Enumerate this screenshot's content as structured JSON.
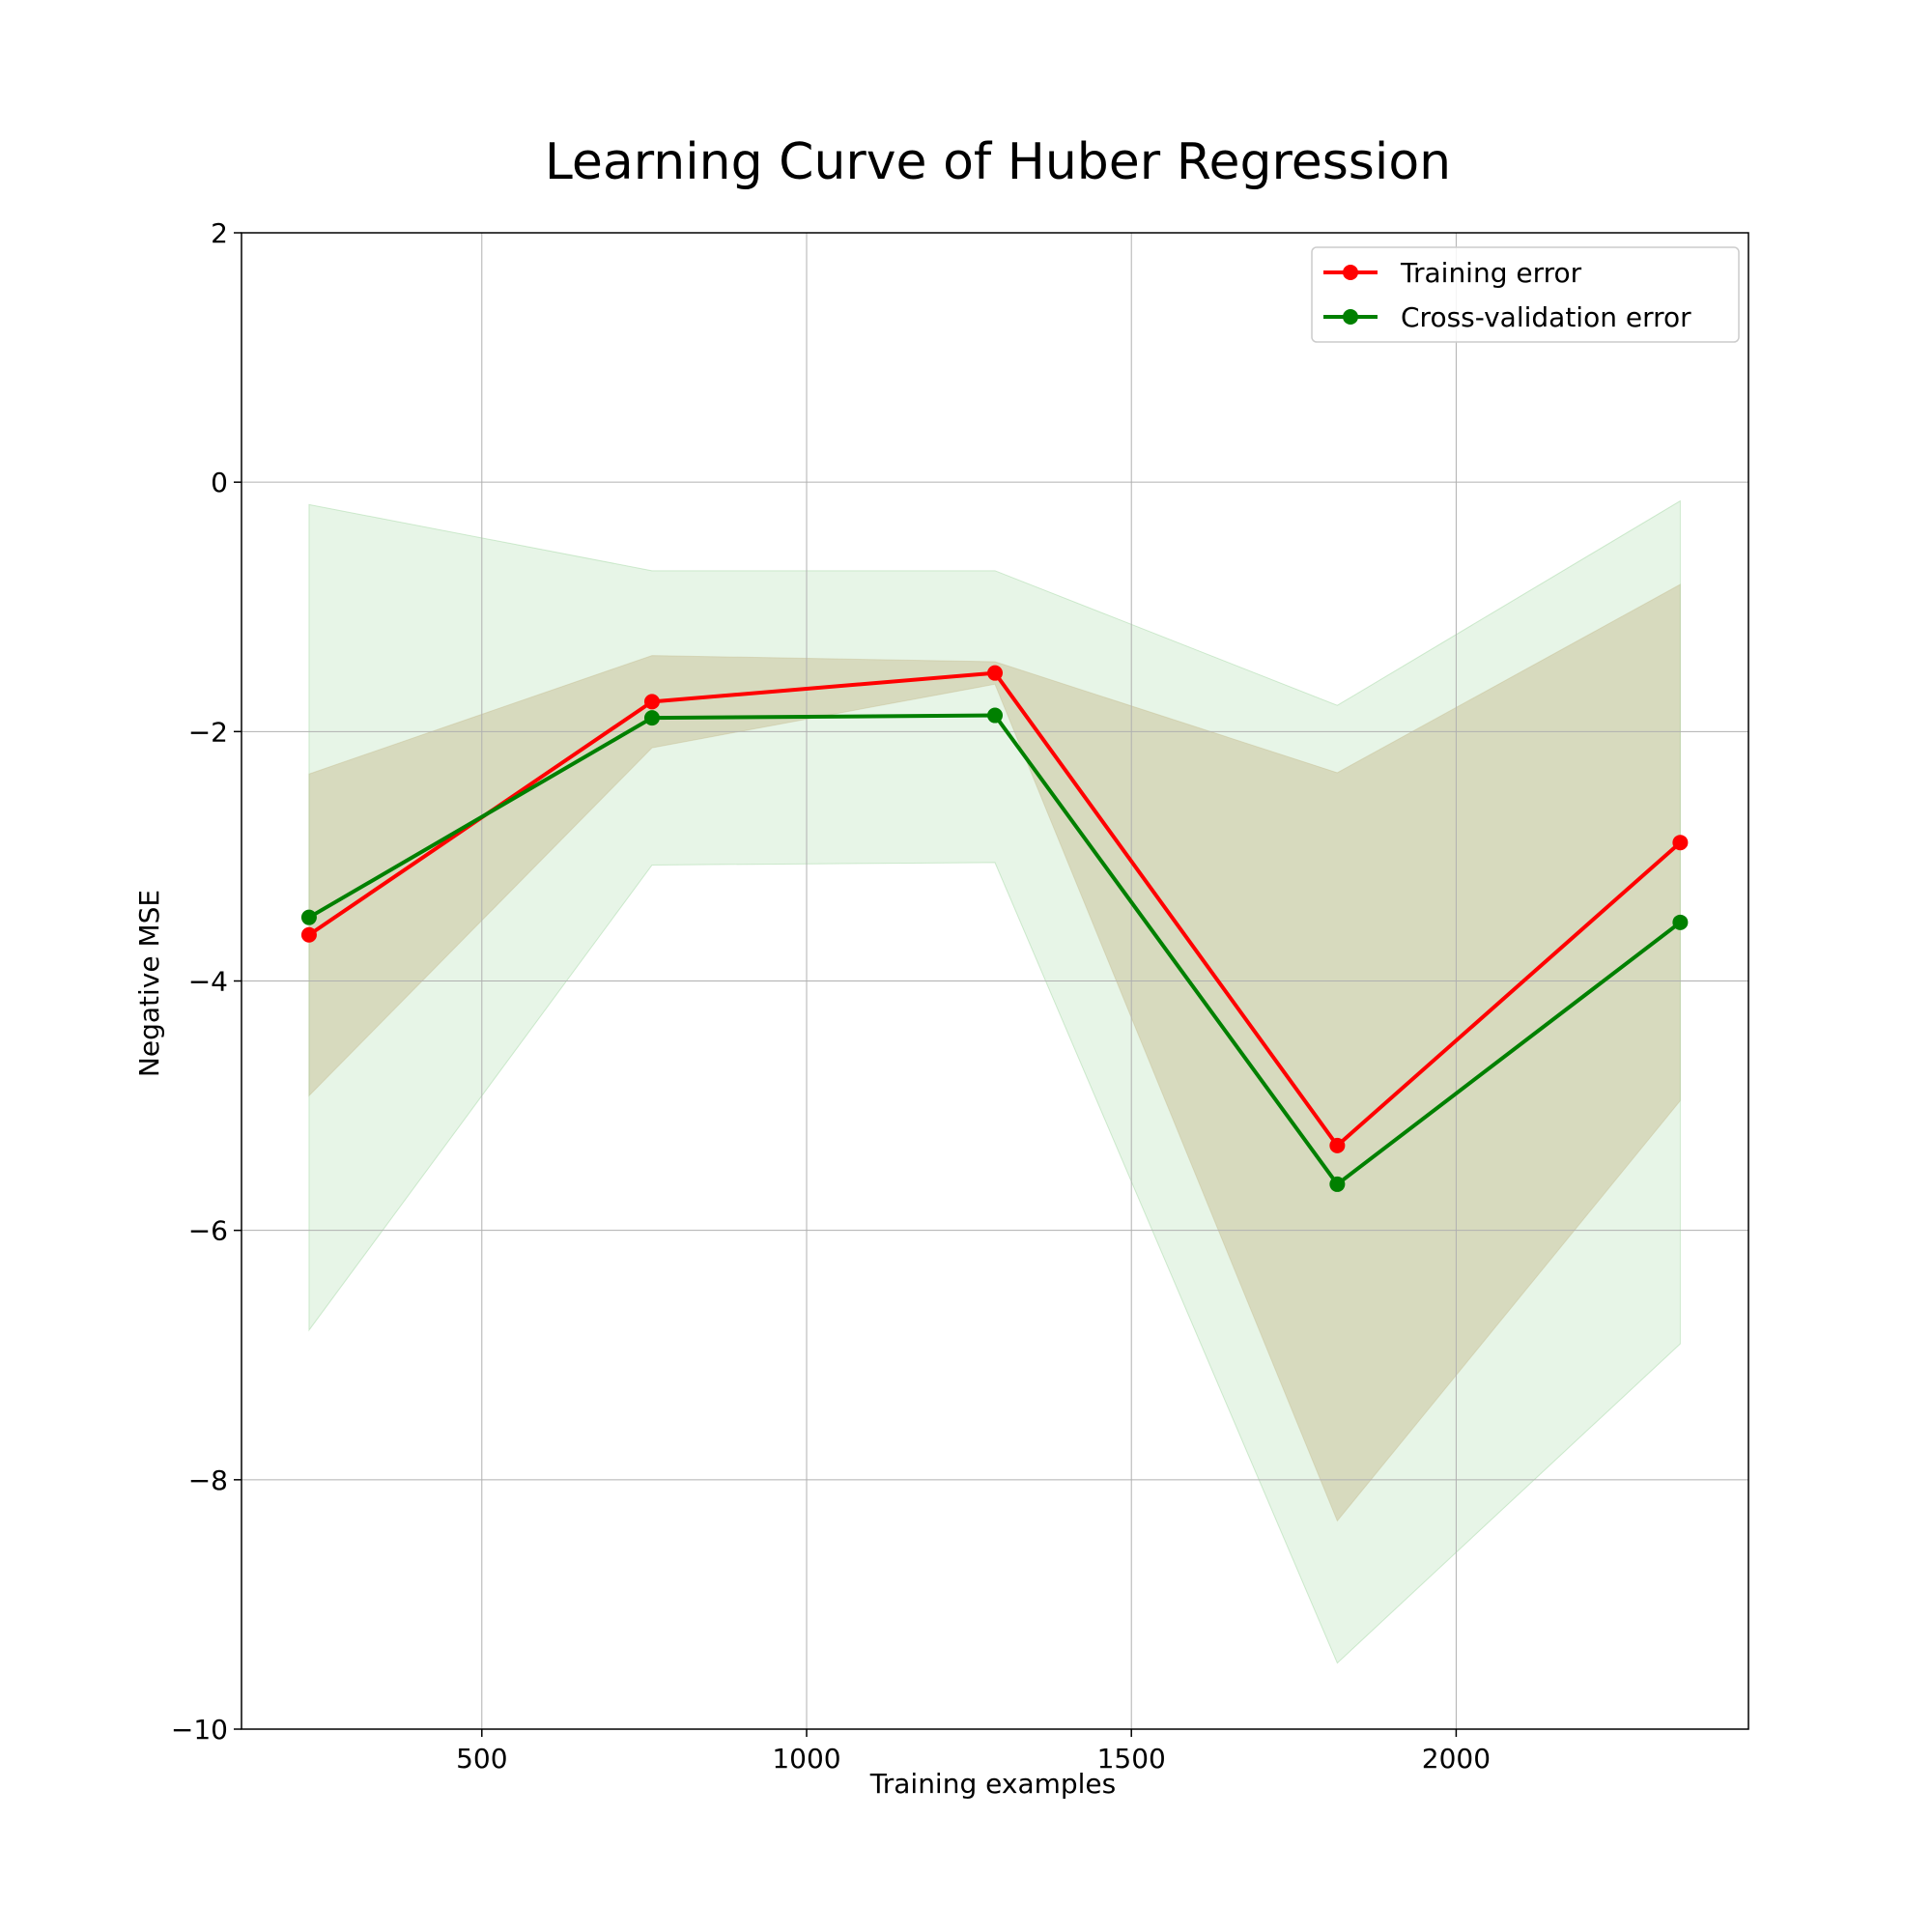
{
  "chart_data": {
    "type": "line",
    "title": "Learning Curve of Huber Regression",
    "xlabel": "Training examples",
    "ylabel": "Negative MSE",
    "xlim": [
      130,
      2450
    ],
    "ylim": [
      -10,
      2
    ],
    "xticks": [
      500,
      1000,
      1500,
      2000
    ],
    "yticks": [
      -10,
      -8,
      -6,
      -4,
      -2,
      0,
      2
    ],
    "x": [
      234,
      762,
      1290,
      1817,
      2345
    ],
    "grid": true,
    "legend_position": "top-right",
    "series": [
      {
        "name": "Training error",
        "color": "#ff0000",
        "values": [
          -3.63,
          -1.76,
          -1.53,
          -5.32,
          -2.89
        ],
        "band_lower": [
          -4.92,
          -2.13,
          -1.62,
          -8.33,
          -4.96
        ],
        "band_upper": [
          -2.34,
          -1.39,
          -1.44,
          -2.33,
          -0.82
        ],
        "band_color": "#d2b48c"
      },
      {
        "name": "Cross-validation error",
        "color": "#008000",
        "values": [
          -3.49,
          -1.89,
          -1.87,
          -5.63,
          -3.53
        ],
        "band_lower": [
          -6.8,
          -3.07,
          -3.05,
          -9.47,
          -6.91
        ],
        "band_upper": [
          -0.18,
          -0.71,
          -0.71,
          -1.79,
          -0.15
        ],
        "band_color": "#90d090"
      }
    ]
  }
}
